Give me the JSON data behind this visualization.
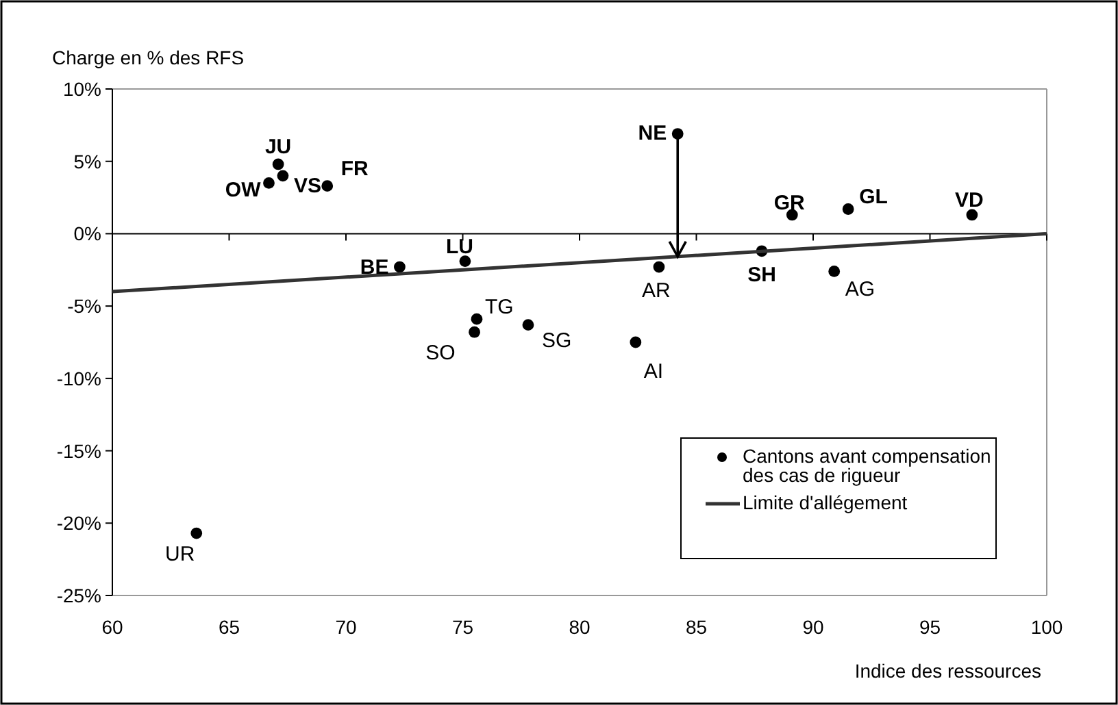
{
  "chart_data": {
    "type": "scatter",
    "ylabel": "Charge en % des RFS",
    "xlabel": "Indice des ressources",
    "xlim": [
      60,
      100
    ],
    "xticks": [
      60,
      65,
      70,
      75,
      80,
      85,
      90,
      95,
      100
    ],
    "ylim": [
      -25,
      10
    ],
    "yticks": [
      {
        "value": 10,
        "label": "10%"
      },
      {
        "value": 5,
        "label": "5%"
      },
      {
        "value": 0,
        "label": "0%"
      },
      {
        "value": -5,
        "label": "-5%"
      },
      {
        "value": -10,
        "label": "-10%"
      },
      {
        "value": -15,
        "label": "-15%"
      },
      {
        "value": -20,
        "label": "-20%"
      },
      {
        "value": -25,
        "label": "-25%"
      }
    ],
    "legend": "bottom right",
    "marker": "circle",
    "series": [
      {
        "name": "Cantons avant compensation des cas de rigueur",
        "color": "#000000",
        "x": [
          84.2,
          67.1,
          67.3,
          66.7,
          69.2,
          72.3,
          75.1,
          75.6,
          75.5,
          77.8,
          83.4,
          82.4,
          87.8,
          89.1,
          91.5,
          90.9,
          96.8,
          63.6
        ],
        "values": [
          6.9,
          4.8,
          4.0,
          3.5,
          3.3,
          -2.3,
          -1.9,
          -5.9,
          -6.8,
          -6.3,
          -2.3,
          -7.5,
          -1.2,
          1.3,
          1.7,
          -2.6,
          1.3,
          -20.7
        ]
      },
      {
        "type": "line",
        "name": "Limite d'allégement",
        "color": "#333333",
        "x": [
          60,
          100
        ],
        "values": [
          -4,
          0
        ],
        "line_style": "solid",
        "marker": "none"
      }
    ],
    "annotations": [
      {
        "text": "NE",
        "x": 84.2,
        "y": 6.9
      },
      {
        "text": "JU",
        "x": 67.1,
        "y": 4.8
      },
      {
        "text": "VS",
        "x": 67.3,
        "y": 4.0
      },
      {
        "text": "OW",
        "x": 66.7,
        "y": 3.5
      },
      {
        "text": "FR",
        "x": 69.2,
        "y": 3.3
      },
      {
        "text": "BE",
        "x": 72.3,
        "y": -2.3
      },
      {
        "text": "LU",
        "x": 75.1,
        "y": -1.9
      },
      {
        "text": "TG",
        "x": 75.6,
        "y": -5.9
      },
      {
        "text": "SO",
        "x": 75.5,
        "y": -6.8
      },
      {
        "text": "SG",
        "x": 77.8,
        "y": -6.3
      },
      {
        "text": "AR",
        "x": 83.4,
        "y": -2.3
      },
      {
        "text": "AI",
        "x": 82.4,
        "y": -7.5
      },
      {
        "text": "SH",
        "x": 87.8,
        "y": -1.2
      },
      {
        "text": "GR",
        "x": 89.1,
        "y": 1.3
      },
      {
        "text": "GL",
        "x": 91.5,
        "y": 1.7
      },
      {
        "text": "AG",
        "x": 90.9,
        "y": -2.6
      },
      {
        "text": "VD",
        "x": 96.8,
        "y": 1.3
      },
      {
        "text": "UR",
        "x": 63.6,
        "y": -20.7
      }
    ]
  }
}
